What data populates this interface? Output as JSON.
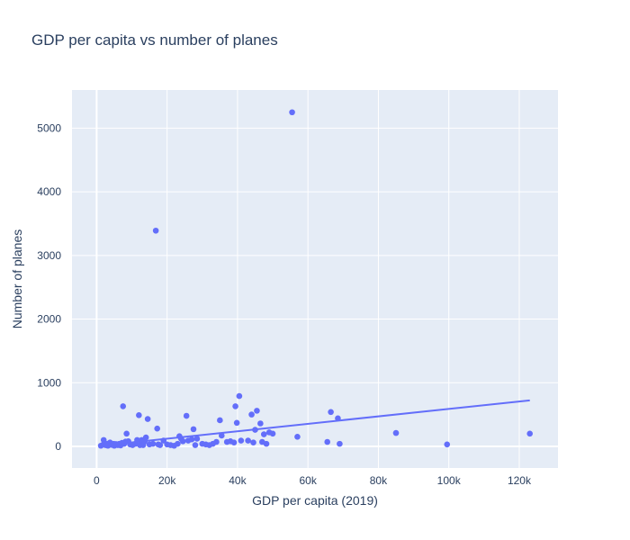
{
  "chart_data": {
    "type": "scatter",
    "title": "GDP per capita vs number of planes",
    "xlabel": "GDP per capita (2019)",
    "ylabel": "Number of planes",
    "xlim": [
      -7000,
      131000
    ],
    "ylim": [
      -340,
      5600
    ],
    "x_ticks": [
      0,
      20000,
      40000,
      60000,
      80000,
      100000,
      120000
    ],
    "x_tick_labels": [
      "0",
      "20k",
      "40k",
      "60k",
      "80k",
      "100k",
      "120k"
    ],
    "y_ticks": [
      0,
      1000,
      2000,
      3000,
      4000,
      5000
    ],
    "y_tick_labels": [
      "0",
      "1000",
      "2000",
      "3000",
      "4000",
      "5000"
    ],
    "grid": true,
    "legend": "none",
    "colors": {
      "marker": "#636efa",
      "trendline": "#636efa",
      "plot_bg": "#e5ecf6",
      "grid": "#ffffff",
      "text": "#2a3f5f"
    },
    "series": [
      {
        "mode": "markers",
        "points": [
          [
            1200,
            10
          ],
          [
            1900,
            30
          ],
          [
            2000,
            100
          ],
          [
            2500,
            20
          ],
          [
            3000,
            40
          ],
          [
            3200,
            10
          ],
          [
            3800,
            60
          ],
          [
            4200,
            25
          ],
          [
            4800,
            40
          ],
          [
            5000,
            10
          ],
          [
            5500,
            35
          ],
          [
            6000,
            20
          ],
          [
            6400,
            40
          ],
          [
            6800,
            15
          ],
          [
            7200,
            55
          ],
          [
            7500,
            630
          ],
          [
            7800,
            40
          ],
          [
            8200,
            75
          ],
          [
            8500,
            200
          ],
          [
            9000,
            80
          ],
          [
            9500,
            30
          ],
          [
            10200,
            20
          ],
          [
            11000,
            40
          ],
          [
            11500,
            100
          ],
          [
            12000,
            490
          ],
          [
            12300,
            20
          ],
          [
            12800,
            100
          ],
          [
            13200,
            20
          ],
          [
            13600,
            75
          ],
          [
            14000,
            140
          ],
          [
            14500,
            430
          ],
          [
            15000,
            30
          ],
          [
            16000,
            40
          ],
          [
            16800,
            3390
          ],
          [
            17200,
            280
          ],
          [
            17500,
            30
          ],
          [
            18000,
            20
          ],
          [
            19000,
            90
          ],
          [
            20000,
            30
          ],
          [
            21000,
            20
          ],
          [
            22000,
            10
          ],
          [
            23000,
            40
          ],
          [
            23500,
            160
          ],
          [
            24000,
            120
          ],
          [
            24500,
            80
          ],
          [
            25500,
            480
          ],
          [
            26000,
            90
          ],
          [
            27000,
            110
          ],
          [
            27500,
            270
          ],
          [
            28000,
            20
          ],
          [
            28500,
            120
          ],
          [
            30000,
            40
          ],
          [
            31000,
            30
          ],
          [
            32000,
            20
          ],
          [
            33000,
            40
          ],
          [
            34000,
            70
          ],
          [
            35000,
            410
          ],
          [
            35500,
            170
          ],
          [
            37000,
            70
          ],
          [
            38000,
            80
          ],
          [
            39000,
            60
          ],
          [
            39400,
            630
          ],
          [
            39800,
            370
          ],
          [
            40500,
            790
          ],
          [
            41000,
            90
          ],
          [
            43000,
            90
          ],
          [
            44000,
            500
          ],
          [
            44500,
            60
          ],
          [
            45000,
            260
          ],
          [
            45500,
            560
          ],
          [
            46500,
            360
          ],
          [
            47000,
            70
          ],
          [
            47500,
            190
          ],
          [
            48200,
            40
          ],
          [
            49000,
            220
          ],
          [
            50000,
            200
          ],
          [
            55500,
            5250
          ],
          [
            57000,
            150
          ],
          [
            65500,
            70
          ],
          [
            66500,
            540
          ],
          [
            68500,
            440
          ],
          [
            69000,
            40
          ],
          [
            85000,
            210
          ],
          [
            99500,
            30
          ],
          [
            123000,
            200
          ]
        ]
      },
      {
        "mode": "lines",
        "points": [
          [
            1200,
            10
          ],
          [
            123000,
            723
          ]
        ]
      }
    ]
  }
}
